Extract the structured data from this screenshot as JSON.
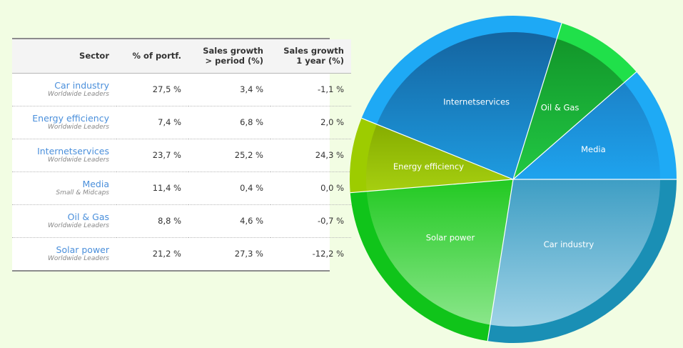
{
  "table": {
    "headers": {
      "sector": "Sector",
      "pct": "% of portf.",
      "sales_period_line1": "Sales growth",
      "sales_period_line2": "> period (%)",
      "sales_year_line1": "Sales growth",
      "sales_year_line2": "1 year (%)"
    },
    "rows": [
      {
        "name": "Car industry",
        "sub": "Worldwide Leaders",
        "pct": "27,5 %",
        "sales_period": "3,4 %",
        "sales_year": "-1,1 %"
      },
      {
        "name": "Energy efficiency",
        "sub": "Worldwide Leaders",
        "pct": "7,4 %",
        "sales_period": "6,8 %",
        "sales_year": "2,0 %"
      },
      {
        "name": "Internetservices",
        "sub": "Worldwide Leaders",
        "pct": "23,7 %",
        "sales_period": "25,2 %",
        "sales_year": "24,3 %"
      },
      {
        "name": "Media",
        "sub": "Small & Midcaps",
        "pct": "11,4 %",
        "sales_period": "0,4 %",
        "sales_year": "0,0 %"
      },
      {
        "name": "Oil & Gas",
        "sub": "Worldwide Leaders",
        "pct": "8,8 %",
        "sales_period": "4,6 %",
        "sales_year": "-0,7 %"
      },
      {
        "name": "Solar power",
        "sub": "Worldwide Leaders",
        "pct": "21,2 %",
        "sales_period": "27,3 %",
        "sales_year": "-12,2 %"
      }
    ]
  },
  "chart_data": {
    "type": "pie",
    "slices": [
      {
        "label": "Car industry",
        "value": 27.5,
        "outer_color": "#1a8fb5",
        "inner_top": "#3e9ec4",
        "inner_bottom": "#9fd2e6"
      },
      {
        "label": "Solar power",
        "value": 21.2,
        "outer_color": "#10c41a",
        "inner_top": "#22c922",
        "inner_bottom": "#8ae68a"
      },
      {
        "label": "Energy efficiency",
        "value": 7.4,
        "outer_color": "#9dcc00",
        "inner_top": "#86ad00",
        "inner_bottom": "#a6cf10"
      },
      {
        "label": "Internetservices",
        "value": 23.7,
        "outer_color": "#1ea9f5",
        "inner_top": "#1464a0",
        "inner_bottom": "#1e9be0"
      },
      {
        "label": "Oil & Gas",
        "value": 8.8,
        "outer_color": "#20e04a",
        "inner_top": "#12962a",
        "inner_bottom": "#22c844"
      },
      {
        "label": "Media",
        "value": 11.4,
        "outer_color": "#1eaaf5",
        "inner_top": "#1b82c8",
        "inner_bottom": "#1ea3ee"
      }
    ],
    "start_angle_deg": 0,
    "direction": "clockwise"
  }
}
